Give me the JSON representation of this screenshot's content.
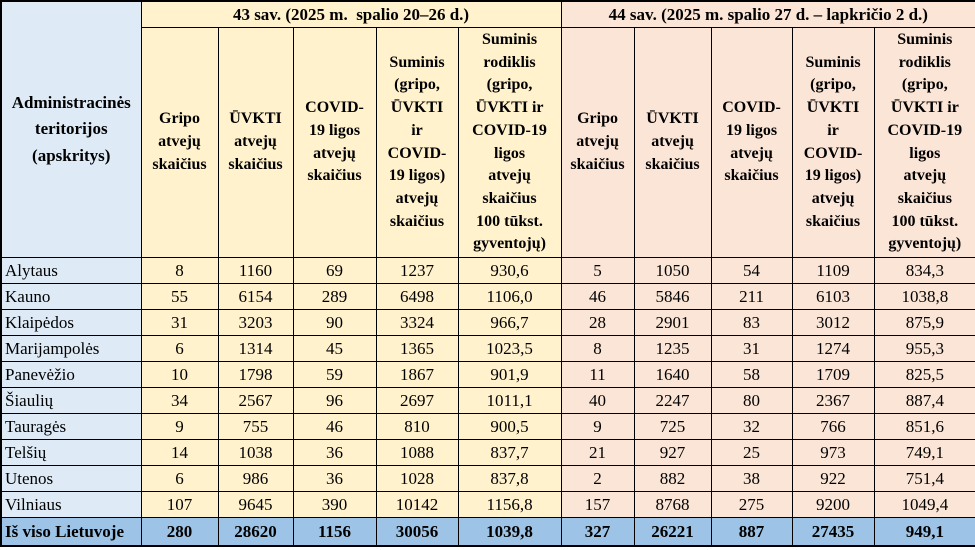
{
  "colors": {
    "row_header_bg": "#DEEBF7",
    "week43_bg": "#FFF2CC",
    "week44_bg": "#FBE5D6",
    "total_row_bg": "#9DC3E6",
    "border": "#000000",
    "text": "#000000"
  },
  "table": {
    "corner_header": "Administracinės\nteritorijos\n(apskritys)",
    "groups": [
      {
        "label": "43 sav. (2025 m.  spalio 20–26 d.)",
        "columns": [
          "Gripo\natvejų\nskaičius",
          "ŪVKTI\natvejų\nskaičius",
          "COVID-\n19 ligos\natvejų\nskaičius",
          "Suminis\n(gripo,\nŪVKTI\nir\nCOVID-\n19 ligos)\natvejų\nskaičius",
          "Suminis\nrodiklis\n(gripo,\nŪVKTI ir\nCOVID-19\nligos\natvejų\nskaičius\n100 tūkst.\ngyventojų)"
        ]
      },
      {
        "label": "44 sav. (2025 m. spalio 27 d. – lapkričio 2 d.)",
        "columns": [
          "Gripo\natvejų\nskaičius",
          "ŪVKTI\natvejų\nskaičius",
          "COVID-\n19 ligos\natvejų\nskaičius",
          "Suminis\n(gripo,\nŪVKTI\nir\nCOVID-\n19 ligos)\natvejų\nskaičius",
          "Suminis\nrodiklis\n(gripo,\nŪVKTI ir\nCOVID-19\nligos\natvejų\nskaičius\n100 tūkst.\ngyventojų)"
        ]
      }
    ],
    "rows": [
      {
        "territory": "Alytaus",
        "week43": [
          "8",
          "1160",
          "69",
          "1237",
          "930,6"
        ],
        "week44": [
          "5",
          "1050",
          "54",
          "1109",
          "834,3"
        ]
      },
      {
        "territory": "Kauno",
        "week43": [
          "55",
          "6154",
          "289",
          "6498",
          "1106,0"
        ],
        "week44": [
          "46",
          "5846",
          "211",
          "6103",
          "1038,8"
        ]
      },
      {
        "territory": "Klaipėdos",
        "week43": [
          "31",
          "3203",
          "90",
          "3324",
          "966,7"
        ],
        "week44": [
          "28",
          "2901",
          "83",
          "3012",
          "875,9"
        ]
      },
      {
        "territory": "Marijampolės",
        "week43": [
          "6",
          "1314",
          "45",
          "1365",
          "1023,5"
        ],
        "week44": [
          "8",
          "1235",
          "31",
          "1274",
          "955,3"
        ]
      },
      {
        "territory": "Panevėžio",
        "week43": [
          "10",
          "1798",
          "59",
          "1867",
          "901,9"
        ],
        "week44": [
          "11",
          "1640",
          "58",
          "1709",
          "825,5"
        ]
      },
      {
        "territory": "Šiaulių",
        "week43": [
          "34",
          "2567",
          "96",
          "2697",
          "1011,1"
        ],
        "week44": [
          "40",
          "2247",
          "80",
          "2367",
          "887,4"
        ]
      },
      {
        "territory": "Tauragės",
        "week43": [
          "9",
          "755",
          "46",
          "810",
          "900,5"
        ],
        "week44": [
          "9",
          "725",
          "32",
          "766",
          "851,6"
        ]
      },
      {
        "territory": "Telšių",
        "week43": [
          "14",
          "1038",
          "36",
          "1088",
          "837,7"
        ],
        "week44": [
          "21",
          "927",
          "25",
          "973",
          "749,1"
        ]
      },
      {
        "territory": "Utenos",
        "week43": [
          "6",
          "986",
          "36",
          "1028",
          "837,8"
        ],
        "week44": [
          "2",
          "882",
          "38",
          "922",
          "751,4"
        ]
      },
      {
        "territory": "Vilniaus",
        "week43": [
          "107",
          "9645",
          "390",
          "10142",
          "1156,8"
        ],
        "week44": [
          "157",
          "8768",
          "275",
          "9200",
          "1049,4"
        ]
      }
    ],
    "total": {
      "label": "Iš viso Lietuvoje",
      "week43": [
        "280",
        "28620",
        "1156",
        "30056",
        "1039,8"
      ],
      "week44": [
        "327",
        "26221",
        "887",
        "27435",
        "949,1"
      ]
    }
  },
  "chart_data": {
    "type": "table",
    "title": "",
    "row_header": "Administracinės teritorijos (apskritys)",
    "column_groups": [
      "43 sav. (2025 m. spalio 20–26 d.)",
      "44 sav. (2025 m. spalio 27 d. – lapkričio 2 d.)"
    ],
    "columns_per_group": [
      "Gripo atvejų skaičius",
      "ŪVKTI atvejų skaičius",
      "COVID-19 ligos atvejų skaičius",
      "Suminis (gripo, ŪVKTI ir COVID-19 ligos) atvejų skaičius",
      "Suminis rodiklis (gripo, ŪVKTI ir COVID-19 ligos atvejų skaičius 100 tūkst. gyventojų)"
    ],
    "rows": [
      {
        "territory": "Alytaus",
        "week43": [
          8,
          1160,
          69,
          1237,
          930.6
        ],
        "week44": [
          5,
          1050,
          54,
          1109,
          834.3
        ]
      },
      {
        "territory": "Kauno",
        "week43": [
          55,
          6154,
          289,
          6498,
          1106.0
        ],
        "week44": [
          46,
          5846,
          211,
          6103,
          1038.8
        ]
      },
      {
        "territory": "Klaipėdos",
        "week43": [
          31,
          3203,
          90,
          3324,
          966.7
        ],
        "week44": [
          28,
          2901,
          83,
          3012,
          875.9
        ]
      },
      {
        "territory": "Marijampolės",
        "week43": [
          6,
          1314,
          45,
          1365,
          1023.5
        ],
        "week44": [
          8,
          1235,
          31,
          1274,
          955.3
        ]
      },
      {
        "territory": "Panevėžio",
        "week43": [
          10,
          1798,
          59,
          1867,
          901.9
        ],
        "week44": [
          11,
          1640,
          58,
          1709,
          825.5
        ]
      },
      {
        "territory": "Šiaulių",
        "week43": [
          34,
          2567,
          96,
          2697,
          1011.1
        ],
        "week44": [
          40,
          2247,
          80,
          2367,
          887.4
        ]
      },
      {
        "territory": "Tauragės",
        "week43": [
          9,
          755,
          46,
          810,
          900.5
        ],
        "week44": [
          9,
          725,
          32,
          766,
          851.6
        ]
      },
      {
        "territory": "Telšių",
        "week43": [
          14,
          1038,
          36,
          1088,
          837.7
        ],
        "week44": [
          21,
          927,
          25,
          973,
          749.1
        ]
      },
      {
        "territory": "Utenos",
        "week43": [
          6,
          986,
          36,
          1028,
          837.8
        ],
        "week44": [
          2,
          882,
          38,
          922,
          751.4
        ]
      },
      {
        "territory": "Vilniaus",
        "week43": [
          107,
          9645,
          390,
          10142,
          1156.8
        ],
        "week44": [
          157,
          8768,
          275,
          9200,
          1049.4
        ]
      }
    ],
    "total_row": {
      "territory": "Iš viso Lietuvoje",
      "week43": [
        280,
        28620,
        1156,
        30056,
        1039.8
      ],
      "week44": [
        327,
        26221,
        887,
        27435,
        949.1
      ]
    }
  }
}
